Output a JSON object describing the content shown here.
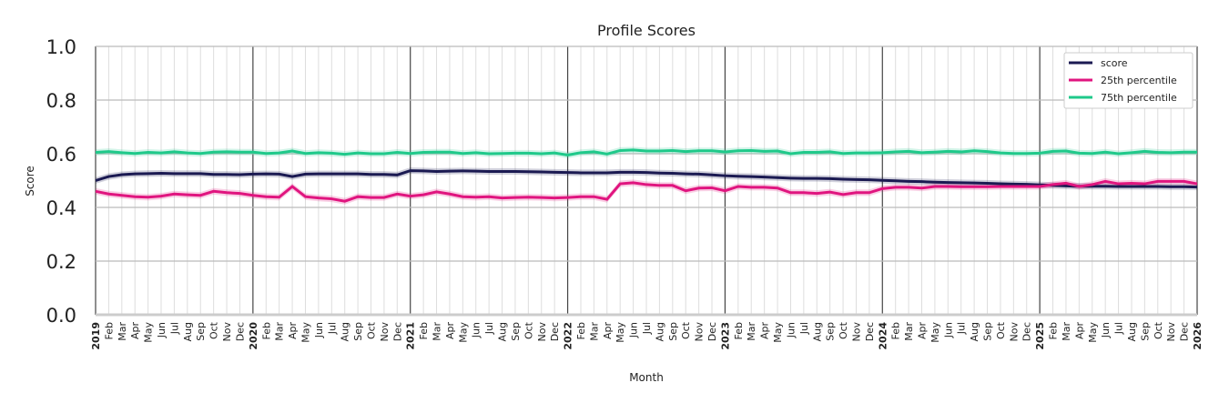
{
  "chart_data": {
    "type": "line",
    "title": "Profile Scores",
    "xlabel": "Month",
    "ylabel": "Score",
    "ylim": [
      0,
      1
    ],
    "yticks": [
      "0.0",
      "0.2",
      "0.4",
      "0.6",
      "0.8",
      "1.0"
    ],
    "grid": true,
    "legend_placement": "top-right",
    "x_start": "2019-01",
    "x_end": "2026-01",
    "month_labels": [
      "Feb",
      "Mar",
      "Apr",
      "May",
      "Jun",
      "Jul",
      "Aug",
      "Sep",
      "Oct",
      "Nov",
      "Dec"
    ],
    "year_labels": [
      "2019",
      "2020",
      "2021",
      "2022",
      "2023",
      "2024",
      "2025",
      "2026"
    ],
    "confidence_band_halfwidth": 0.012,
    "series": [
      {
        "name": "score",
        "color": "#1b1a52",
        "values": [
          0.5,
          0.515,
          0.522,
          0.525,
          0.526,
          0.527,
          0.526,
          0.526,
          0.526,
          0.523,
          0.523,
          0.522,
          0.524,
          0.525,
          0.524,
          0.515,
          0.524,
          0.525,
          0.525,
          0.525,
          0.525,
          0.523,
          0.523,
          0.521,
          0.537,
          0.536,
          0.534,
          0.535,
          0.536,
          0.535,
          0.534,
          0.534,
          0.534,
          0.533,
          0.532,
          0.531,
          0.53,
          0.529,
          0.529,
          0.529,
          0.531,
          0.531,
          0.53,
          0.528,
          0.527,
          0.525,
          0.524,
          0.521,
          0.518,
          0.516,
          0.515,
          0.513,
          0.511,
          0.509,
          0.508,
          0.508,
          0.507,
          0.505,
          0.504,
          0.503,
          0.501,
          0.499,
          0.497,
          0.496,
          0.494,
          0.493,
          0.492,
          0.491,
          0.49,
          0.488,
          0.487,
          0.486,
          0.484,
          0.482,
          0.48,
          0.479,
          0.479,
          0.479,
          0.478,
          0.478,
          0.478,
          0.478,
          0.477,
          0.477,
          0.476
        ]
      },
      {
        "name": "25th percentile",
        "color": "#e0157f",
        "values": [
          0.46,
          0.45,
          0.445,
          0.44,
          0.438,
          0.442,
          0.45,
          0.447,
          0.445,
          0.46,
          0.455,
          0.452,
          0.445,
          0.44,
          0.438,
          0.478,
          0.44,
          0.435,
          0.432,
          0.423,
          0.44,
          0.437,
          0.437,
          0.45,
          0.442,
          0.447,
          0.458,
          0.45,
          0.44,
          0.438,
          0.44,
          0.435,
          0.437,
          0.438,
          0.437,
          0.435,
          0.437,
          0.44,
          0.44,
          0.43,
          0.488,
          0.492,
          0.485,
          0.482,
          0.482,
          0.462,
          0.472,
          0.473,
          0.462,
          0.478,
          0.475,
          0.475,
          0.472,
          0.455,
          0.455,
          0.452,
          0.457,
          0.448,
          0.455,
          0.455,
          0.47,
          0.475,
          0.475,
          0.472,
          0.478,
          0.478,
          0.477,
          0.477,
          0.477,
          0.478,
          0.478,
          0.478,
          0.478,
          0.485,
          0.49,
          0.478,
          0.485,
          0.497,
          0.488,
          0.49,
          0.488,
          0.497,
          0.497,
          0.497,
          0.488
        ]
      },
      {
        "name": "75th percentile",
        "color": "#1fc98a",
        "values": [
          0.605,
          0.608,
          0.604,
          0.601,
          0.605,
          0.603,
          0.607,
          0.603,
          0.601,
          0.606,
          0.607,
          0.606,
          0.606,
          0.601,
          0.603,
          0.61,
          0.601,
          0.604,
          0.602,
          0.598,
          0.603,
          0.6,
          0.6,
          0.605,
          0.601,
          0.605,
          0.606,
          0.606,
          0.601,
          0.604,
          0.6,
          0.601,
          0.602,
          0.602,
          0.6,
          0.603,
          0.595,
          0.604,
          0.607,
          0.599,
          0.612,
          0.614,
          0.61,
          0.61,
          0.612,
          0.608,
          0.611,
          0.611,
          0.607,
          0.611,
          0.612,
          0.609,
          0.61,
          0.6,
          0.605,
          0.605,
          0.607,
          0.601,
          0.603,
          0.603,
          0.604,
          0.607,
          0.609,
          0.604,
          0.606,
          0.609,
          0.607,
          0.611,
          0.608,
          0.603,
          0.601,
          0.601,
          0.602,
          0.609,
          0.61,
          0.602,
          0.601,
          0.606,
          0.6,
          0.604,
          0.609,
          0.605,
          0.604,
          0.606,
          0.606
        ]
      }
    ]
  }
}
